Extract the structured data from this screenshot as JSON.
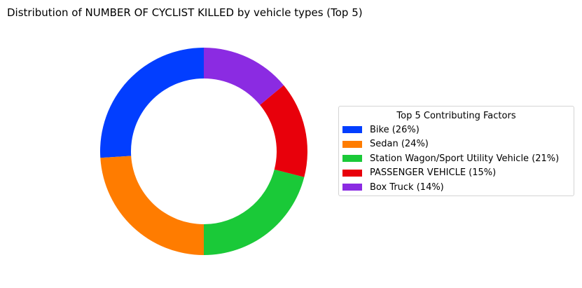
{
  "chart_data": {
    "type": "pie",
    "style": "donut",
    "title": "Distribution of NUMBER OF CYCLIST KILLED by vehicle types (Top 5)",
    "legend": {
      "title": "Top 5 Contributing Factors",
      "placement": "center-right"
    },
    "slices": [
      {
        "label": "Bike (26%)",
        "value": 26,
        "color": "#023eff"
      },
      {
        "label": "Sedan (24%)",
        "value": 24,
        "color": "#ff7c00"
      },
      {
        "label": "Station Wagon/Sport Utility Vehicle (21%)",
        "value": 21,
        "color": "#1ac938"
      },
      {
        "label": "PASSENGER VEHICLE (15%)",
        "value": 15,
        "color": "#e8000b"
      },
      {
        "label": "Box Truck (14%)",
        "value": 14,
        "color": "#8b2be2"
      }
    ]
  }
}
